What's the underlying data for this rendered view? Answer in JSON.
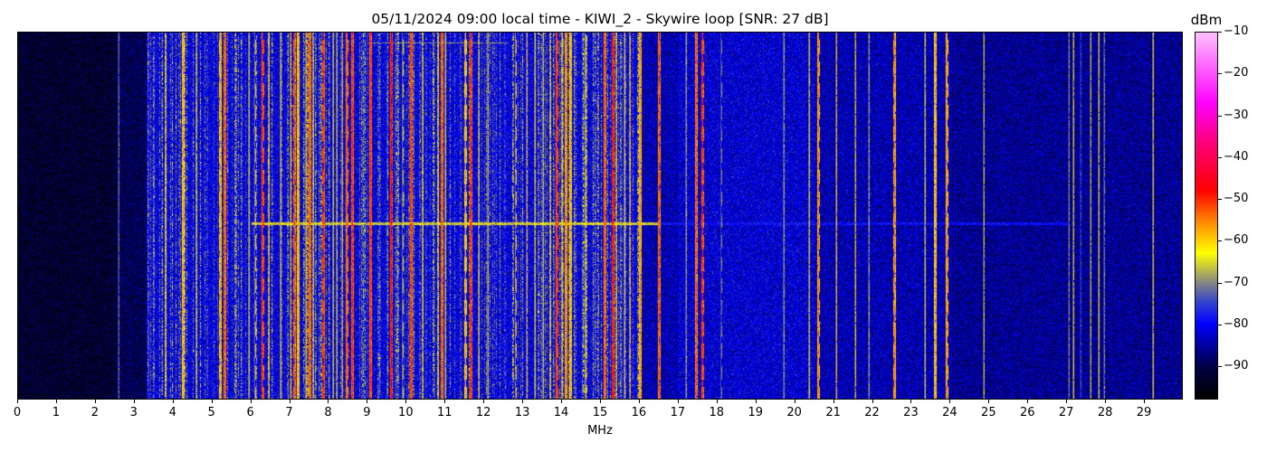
{
  "chart_data": {
    "type": "heatmap",
    "title": "05/11/2024 09:00 local time - KIWI_2 - Skywire loop [SNR: 27 dB]",
    "xlabel": "MHz",
    "ylabel": "",
    "xlim": [
      0,
      30
    ],
    "x_ticks": [
      "0",
      "1",
      "2",
      "3",
      "4",
      "5",
      "6",
      "7",
      "8",
      "9",
      "10",
      "11",
      "12",
      "13",
      "14",
      "15",
      "16",
      "17",
      "18",
      "19",
      "20",
      "21",
      "22",
      "23",
      "24",
      "25",
      "26",
      "27",
      "28",
      "29"
    ],
    "colorbar": {
      "label": "dBm",
      "range": [
        -98,
        -10
      ],
      "ticks": [
        "-10",
        "-20",
        "-30",
        "-40",
        "-50",
        "-60",
        "-70",
        "-80",
        "-90"
      ],
      "colormap": [
        {
          "value": -98,
          "color": "#000000"
        },
        {
          "value": -90,
          "color": "#00004a"
        },
        {
          "value": -80,
          "color": "#0000ff"
        },
        {
          "value": -75,
          "color": "#3040d0"
        },
        {
          "value": -70,
          "color": "#888880"
        },
        {
          "value": -63,
          "color": "#ffff00"
        },
        {
          "value": -56,
          "color": "#ff9000"
        },
        {
          "value": -48,
          "color": "#ff0000"
        },
        {
          "value": -36,
          "color": "#ff0080"
        },
        {
          "value": -27,
          "color": "#ff00ff"
        },
        {
          "value": -10,
          "color": "#ffc0ff"
        }
      ]
    },
    "noise_floor_dbm": [
      {
        "from_mhz": 0,
        "to_mhz": 2.5,
        "level": -93
      },
      {
        "from_mhz": 2.5,
        "to_mhz": 3.3,
        "level": -90
      },
      {
        "from_mhz": 3.3,
        "to_mhz": 16,
        "level": -81
      },
      {
        "from_mhz": 16,
        "to_mhz": 17,
        "level": -84
      },
      {
        "from_mhz": 17,
        "to_mhz": 20.5,
        "level": -82
      },
      {
        "from_mhz": 20.5,
        "to_mhz": 24,
        "level": -84
      },
      {
        "from_mhz": 24,
        "to_mhz": 30,
        "level": -86
      }
    ],
    "carriers": [
      {
        "mhz": 2.58,
        "dbm": -72
      },
      {
        "mhz": 3.8,
        "dbm": -62
      },
      {
        "mhz": 4.25,
        "dbm": -58
      },
      {
        "mhz": 4.6,
        "dbm": -64
      },
      {
        "mhz": 5.2,
        "dbm": -58
      },
      {
        "mhz": 5.3,
        "dbm": -52
      },
      {
        "mhz": 5.95,
        "dbm": -64
      },
      {
        "mhz": 6.1,
        "dbm": -62
      },
      {
        "mhz": 6.3,
        "dbm": -50
      },
      {
        "mhz": 6.45,
        "dbm": -60
      },
      {
        "mhz": 6.75,
        "dbm": -62
      },
      {
        "mhz": 7.0,
        "dbm": -60
      },
      {
        "mhz": 7.1,
        "dbm": -52
      },
      {
        "mhz": 7.2,
        "dbm": -58
      },
      {
        "mhz": 7.4,
        "dbm": -60
      },
      {
        "mhz": 7.5,
        "dbm": -52
      },
      {
        "mhz": 7.6,
        "dbm": -62
      },
      {
        "mhz": 7.85,
        "dbm": -50
      },
      {
        "mhz": 8.1,
        "dbm": -62
      },
      {
        "mhz": 8.2,
        "dbm": -64
      },
      {
        "mhz": 8.35,
        "dbm": -60
      },
      {
        "mhz": 8.45,
        "dbm": -52
      },
      {
        "mhz": 8.6,
        "dbm": -50
      },
      {
        "mhz": 9.05,
        "dbm": -50
      },
      {
        "mhz": 9.6,
        "dbm": -48
      },
      {
        "mhz": 9.9,
        "dbm": -64
      },
      {
        "mhz": 10.1,
        "dbm": -50
      },
      {
        "mhz": 10.4,
        "dbm": -62
      },
      {
        "mhz": 10.8,
        "dbm": -62
      },
      {
        "mhz": 10.9,
        "dbm": -52
      },
      {
        "mhz": 11.0,
        "dbm": -62
      },
      {
        "mhz": 11.5,
        "dbm": -58
      },
      {
        "mhz": 11.65,
        "dbm": -50
      },
      {
        "mhz": 11.85,
        "dbm": -62
      },
      {
        "mhz": 12.1,
        "dbm": -64
      },
      {
        "mhz": 12.8,
        "dbm": -60
      },
      {
        "mhz": 13.1,
        "dbm": -60
      },
      {
        "mhz": 13.3,
        "dbm": -62
      },
      {
        "mhz": 13.5,
        "dbm": -64
      },
      {
        "mhz": 13.7,
        "dbm": -62
      },
      {
        "mhz": 13.85,
        "dbm": -50
      },
      {
        "mhz": 14.0,
        "dbm": -60
      },
      {
        "mhz": 14.1,
        "dbm": -55
      },
      {
        "mhz": 14.2,
        "dbm": -58
      },
      {
        "mhz": 14.6,
        "dbm": -62
      },
      {
        "mhz": 15.1,
        "dbm": -52
      },
      {
        "mhz": 15.3,
        "dbm": -48
      },
      {
        "mhz": 15.4,
        "dbm": -60
      },
      {
        "mhz": 15.6,
        "dbm": -62
      },
      {
        "mhz": 15.75,
        "dbm": -60
      },
      {
        "mhz": 16.0,
        "dbm": -56
      },
      {
        "mhz": 16.5,
        "dbm": -52
      },
      {
        "mhz": 17.2,
        "dbm": -68
      },
      {
        "mhz": 17.45,
        "dbm": -52
      },
      {
        "mhz": 17.6,
        "dbm": -50
      },
      {
        "mhz": 18.1,
        "dbm": -70
      },
      {
        "mhz": 19.7,
        "dbm": -68
      },
      {
        "mhz": 20.35,
        "dbm": -62
      },
      {
        "mhz": 20.6,
        "dbm": -55
      },
      {
        "mhz": 21.05,
        "dbm": -60
      },
      {
        "mhz": 21.55,
        "dbm": -60
      },
      {
        "mhz": 21.9,
        "dbm": -68
      },
      {
        "mhz": 22.55,
        "dbm": -55
      },
      {
        "mhz": 23.35,
        "dbm": -64
      },
      {
        "mhz": 23.6,
        "dbm": -58
      },
      {
        "mhz": 23.9,
        "dbm": -56
      },
      {
        "mhz": 24.85,
        "dbm": -66
      },
      {
        "mhz": 27.05,
        "dbm": -70
      },
      {
        "mhz": 27.15,
        "dbm": -62
      },
      {
        "mhz": 27.35,
        "dbm": -75
      },
      {
        "mhz": 27.6,
        "dbm": -66
      },
      {
        "mhz": 27.8,
        "dbm": -62
      },
      {
        "mhz": 27.95,
        "dbm": -70
      },
      {
        "mhz": 29.2,
        "dbm": -62
      }
    ]
  }
}
